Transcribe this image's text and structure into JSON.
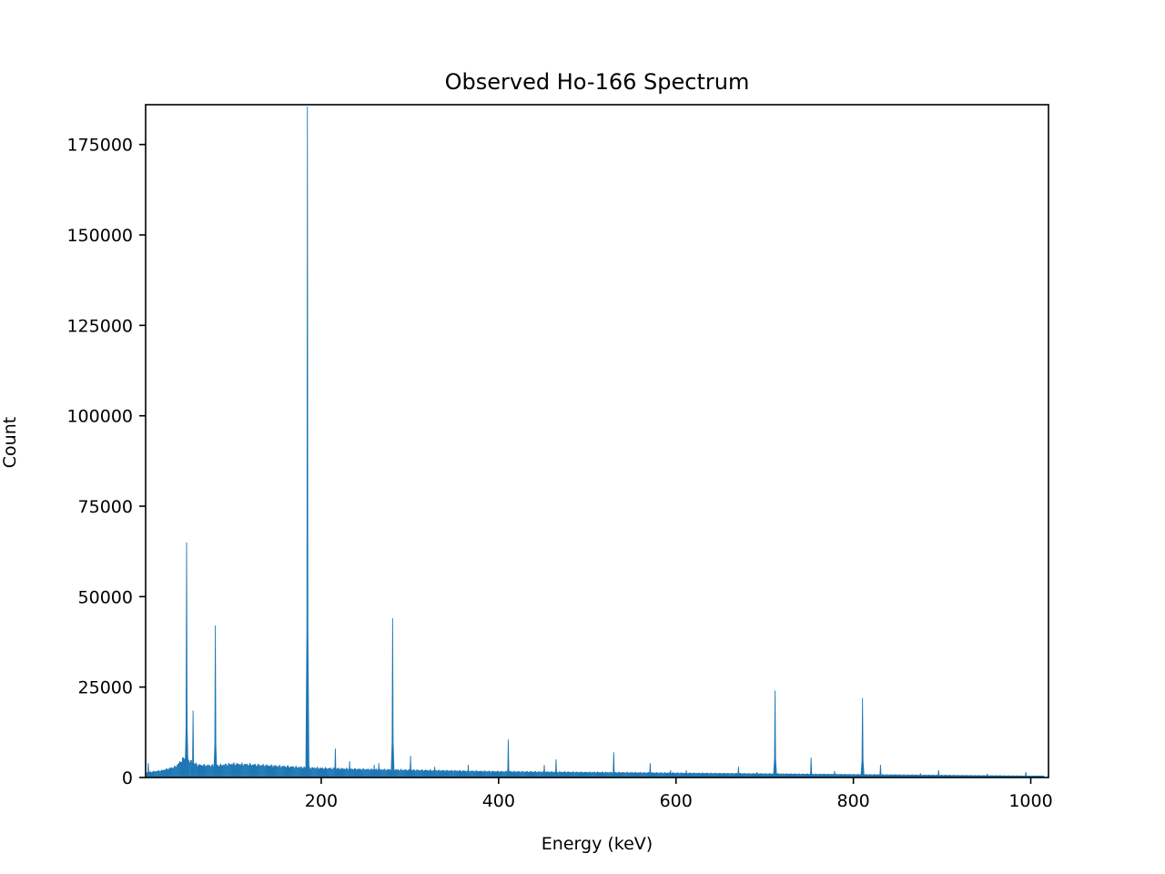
{
  "chart_data": {
    "type": "bar",
    "title": "Observed Ho-166 Spectrum",
    "xlabel": "Energy (keV)",
    "ylabel": "Count",
    "xlim": [
      2,
      1020
    ],
    "ylim": [
      0,
      186000
    ],
    "grid": false,
    "x_ticks": [
      200,
      400,
      600,
      800,
      1000
    ],
    "x_tick_labels": [
      "200",
      "400",
      "600",
      "800",
      "1000"
    ],
    "y_ticks": [
      0,
      25000,
      50000,
      75000,
      100000,
      125000,
      150000,
      175000
    ],
    "y_tick_labels": [
      "0",
      "25000",
      "50000",
      "75000",
      "100000",
      "125000",
      "150000",
      "175000"
    ],
    "color": "#1f77b4",
    "background": [
      [
        5,
        1500
      ],
      [
        20,
        2000
      ],
      [
        35,
        3000
      ],
      [
        45,
        5500
      ],
      [
        60,
        3500
      ],
      [
        80,
        3300
      ],
      [
        100,
        3800
      ],
      [
        120,
        3600
      ],
      [
        150,
        3200
      ],
      [
        180,
        2800
      ],
      [
        200,
        2600
      ],
      [
        250,
        2300
      ],
      [
        300,
        2100
      ],
      [
        400,
        1700
      ],
      [
        500,
        1500
      ],
      [
        600,
        1300
      ],
      [
        700,
        1100
      ],
      [
        800,
        900
      ],
      [
        900,
        700
      ],
      [
        1000,
        500
      ]
    ],
    "peaks": [
      {
        "energy": 5,
        "count": 4000
      },
      {
        "energy": 48.2,
        "count": 65000
      },
      {
        "energy": 55.5,
        "count": 18500
      },
      {
        "energy": 80.6,
        "count": 42000
      },
      {
        "energy": 184.4,
        "count": 185500
      },
      {
        "energy": 215.9,
        "count": 8000
      },
      {
        "energy": 232,
        "count": 4500
      },
      {
        "energy": 259.7,
        "count": 3500
      },
      {
        "energy": 264.9,
        "count": 4000
      },
      {
        "energy": 280.5,
        "count": 44000
      },
      {
        "energy": 300.7,
        "count": 6000
      },
      {
        "energy": 328,
        "count": 3000
      },
      {
        "energy": 365.8,
        "count": 3500
      },
      {
        "energy": 410.9,
        "count": 10500
      },
      {
        "energy": 451.5,
        "count": 3500
      },
      {
        "energy": 464.8,
        "count": 5000
      },
      {
        "energy": 529.8,
        "count": 7000
      },
      {
        "energy": 570.9,
        "count": 4000
      },
      {
        "energy": 593.9,
        "count": 2000
      },
      {
        "energy": 611.6,
        "count": 2000
      },
      {
        "energy": 670.5,
        "count": 3000
      },
      {
        "energy": 691.2,
        "count": 1500
      },
      {
        "energy": 711.7,
        "count": 24000
      },
      {
        "energy": 752.3,
        "count": 5500
      },
      {
        "energy": 778.8,
        "count": 1800
      },
      {
        "energy": 810.3,
        "count": 22000
      },
      {
        "energy": 830.6,
        "count": 3500
      },
      {
        "energy": 875.6,
        "count": 1200
      },
      {
        "energy": 896.1,
        "count": 2000
      },
      {
        "energy": 950.8,
        "count": 1000
      },
      {
        "energy": 994.5,
        "count": 1500
      }
    ]
  }
}
